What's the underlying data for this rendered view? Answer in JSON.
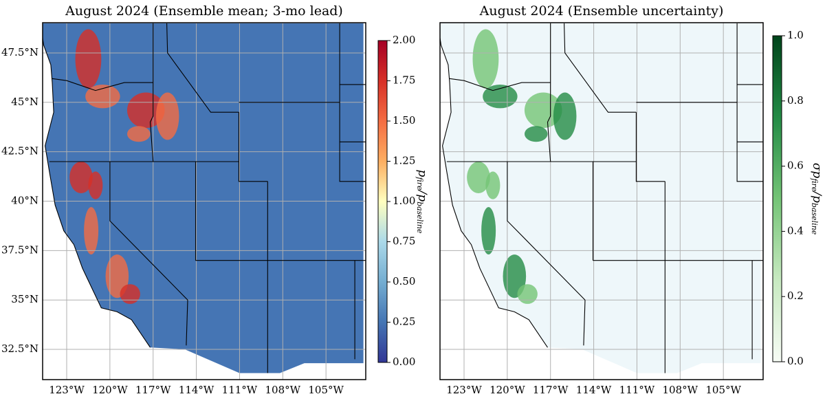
{
  "panels": [
    {
      "title": "August 2024 (Ensemble mean; 3-mo lead)",
      "xlim": [
        -124.67,
        -102.24
      ],
      "ylim": [
        30.97,
        49.03
      ],
      "xticks": [
        {
          "value": -123,
          "label": "123°W"
        },
        {
          "value": -120,
          "label": "120°W"
        },
        {
          "value": -117,
          "label": "117°W"
        },
        {
          "value": -114,
          "label": "114°W"
        },
        {
          "value": -111,
          "label": "111°W"
        },
        {
          "value": -108,
          "label": "108°W"
        },
        {
          "value": -105,
          "label": "105°W"
        }
      ],
      "yticks": [
        {
          "value": 32.5,
          "label": "32.5°N"
        },
        {
          "value": 35,
          "label": "35°N"
        },
        {
          "value": 37.5,
          "label": "37.5°N"
        },
        {
          "value": 40,
          "label": "40°N"
        },
        {
          "value": 42.5,
          "label": "42.5°N"
        },
        {
          "value": 45,
          "label": "45°N"
        },
        {
          "value": 47.5,
          "label": "47.5°N"
        }
      ],
      "colorbar": {
        "lim": [
          0,
          2
        ],
        "ticks": [
          {
            "value": 0,
            "label": "0.00"
          },
          {
            "value": 0.25,
            "label": "0.25"
          },
          {
            "value": 0.5,
            "label": "0.50"
          },
          {
            "value": 0.75,
            "label": "0.75"
          },
          {
            "value": 1,
            "label": "1.00"
          },
          {
            "value": 1.25,
            "label": "1.25"
          },
          {
            "value": 1.5,
            "label": "1.50"
          },
          {
            "value": 1.75,
            "label": "1.75"
          },
          {
            "value": 2,
            "label": "2.00"
          }
        ],
        "colors": [
          "#313695",
          "#4575b4",
          "#74add1",
          "#abd9e9",
          "#ffffbf",
          "#fdae61",
          "#f46d43",
          "#d73027",
          "#a50026"
        ],
        "label": {
          "prefix": "",
          "symbol": "p",
          "sub": "fire",
          "separator": "/",
          "symbol2": "p",
          "sub2": "baseline"
        }
      }
    },
    {
      "title": "August 2024 (Ensemble uncertainty)",
      "xlim": [
        -124.67,
        -102.24
      ],
      "ylim": [
        30.97,
        49.03
      ],
      "xticks": [
        {
          "value": -123,
          "label": "123°W"
        },
        {
          "value": -120,
          "label": "120°W"
        },
        {
          "value": -117,
          "label": "117°W"
        },
        {
          "value": -114,
          "label": "114°W"
        },
        {
          "value": -111,
          "label": "111°W"
        },
        {
          "value": -108,
          "label": "108°W"
        },
        {
          "value": -105,
          "label": "105°W"
        }
      ],
      "yticks": [],
      "colorbar": {
        "lim": [
          0,
          1
        ],
        "ticks": [
          {
            "value": 0,
            "label": "0.0"
          },
          {
            "value": 0.2,
            "label": "0.2"
          },
          {
            "value": 0.4,
            "label": "0.4"
          },
          {
            "value": 0.6,
            "label": "0.6"
          },
          {
            "value": 0.8,
            "label": "0.8"
          },
          {
            "value": 1,
            "label": "1.0"
          }
        ],
        "colors": [
          "#f7fcf5",
          "#c7e9c0",
          "#74c476",
          "#238b45",
          "#00441b"
        ],
        "label": {
          "prefix": "σ",
          "symbol": "p",
          "sub": "fire",
          "separator": "/",
          "symbol2": "p",
          "sub2": "baseline"
        }
      }
    }
  ]
}
